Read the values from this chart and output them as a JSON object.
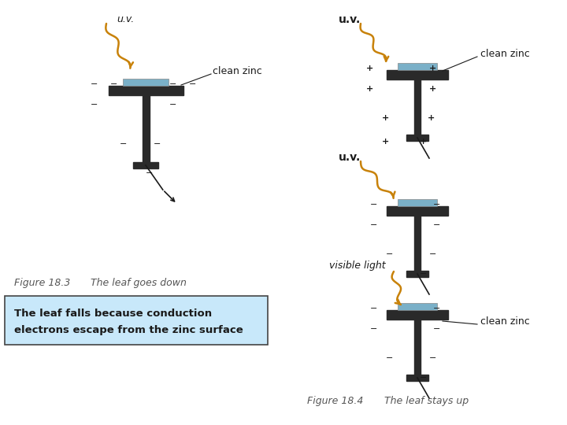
{
  "dark_color": "#1a1a1a",
  "zinc_plate_color": "#7ab0c8",
  "electroscope_color": "#2a2a2a",
  "uv_arrow_color": "#c8820a",
  "box_bg": "#c8e8fa",
  "box_border": "#444444",
  "box_text_line1": "The leaf falls because conduction",
  "box_text_line2": "electrons escape from the zinc surface",
  "fig183_caption": "Figure 18.3",
  "fig183_caption2": "The leaf goes down",
  "fig184_caption": "Figure 18.4",
  "fig184_caption2": "The leaf stays up",
  "uv_label": "u.v.",
  "uv_label_bold": "u.v.",
  "zinc_label": "clean zinc",
  "visible_light_label": "visible light"
}
